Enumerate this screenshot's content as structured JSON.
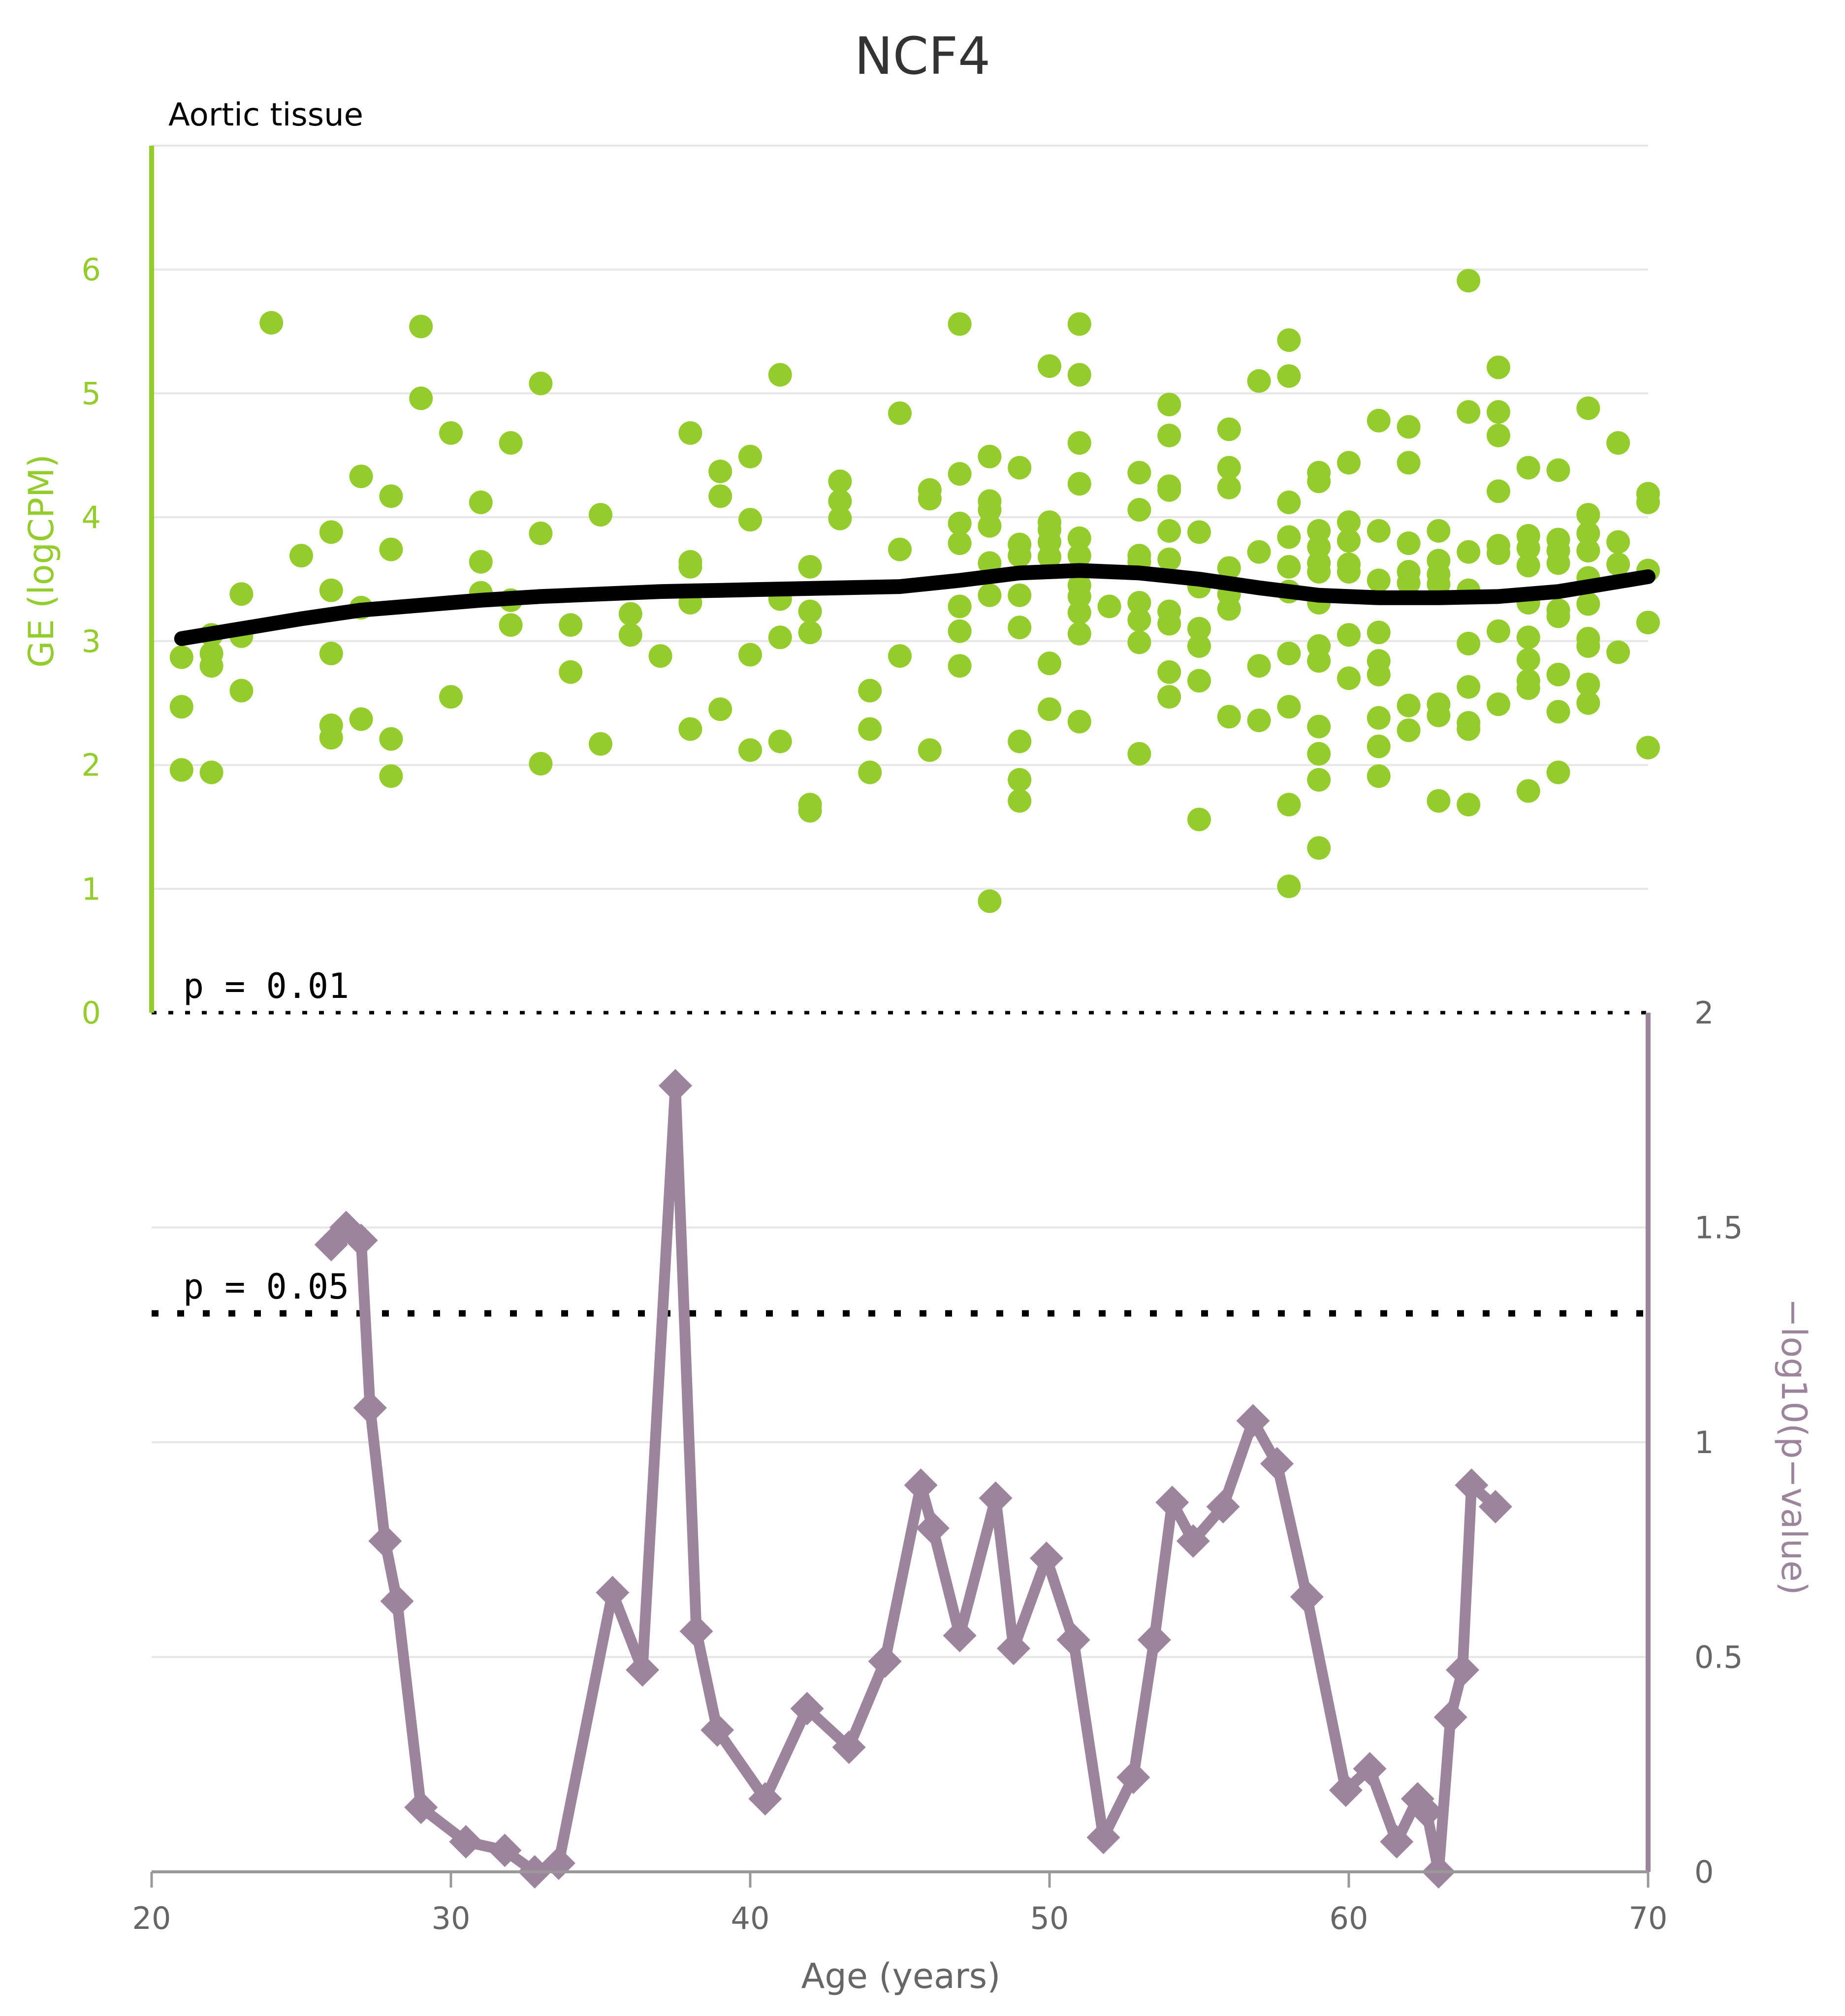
{
  "colors": {
    "scatter": "#94cc2e",
    "trend": "#000000",
    "pvalue_line": "#9c849c",
    "top_axis": "#94cc2e",
    "bottom_axis": "#9c849c",
    "grid": "#e6e6e6",
    "text": "#333333",
    "bottom_tick_text": "#666666",
    "reference_line": "#000000"
  },
  "chart_data": [
    {
      "panel": "top",
      "type": "scatter",
      "title": "NCF4",
      "subtitle": "Aortic tissue",
      "xlabel": "Age (years)",
      "ylabel": "GE (logCPM)",
      "xlim": [
        20,
        70
      ],
      "ylim": [
        0,
        7
      ],
      "yticks": [
        0,
        1,
        2,
        3,
        4,
        5,
        6
      ],
      "xticks": [
        20,
        30,
        40,
        50,
        60,
        70
      ],
      "grid": true,
      "points": [
        [
          21,
          2.87
        ],
        [
          21,
          2.47
        ],
        [
          21,
          1.96
        ],
        [
          22,
          3.05
        ],
        [
          22,
          2.9
        ],
        [
          22,
          2.8
        ],
        [
          22,
          1.94
        ],
        [
          23,
          3.38
        ],
        [
          23,
          3.04
        ],
        [
          23,
          2.6
        ],
        [
          24,
          5.57
        ],
        [
          25,
          3.69
        ],
        [
          26,
          3.88
        ],
        [
          26,
          3.41
        ],
        [
          26,
          2.9
        ],
        [
          26,
          2.32
        ],
        [
          26,
          2.22
        ],
        [
          27,
          4.33
        ],
        [
          27,
          3.27
        ],
        [
          27,
          2.37
        ],
        [
          28,
          4.17
        ],
        [
          28,
          3.74
        ],
        [
          28,
          2.21
        ],
        [
          28,
          1.91
        ],
        [
          29,
          5.54
        ],
        [
          29,
          4.96
        ],
        [
          30,
          4.68
        ],
        [
          30,
          2.55
        ],
        [
          31,
          4.12
        ],
        [
          31,
          3.64
        ],
        [
          31,
          3.39
        ],
        [
          32,
          4.6
        ],
        [
          32,
          3.33
        ],
        [
          32,
          3.13
        ],
        [
          33,
          5.08
        ],
        [
          33,
          3.87
        ],
        [
          33,
          2.01
        ],
        [
          34,
          3.13
        ],
        [
          34,
          2.75
        ],
        [
          35,
          4.02
        ],
        [
          35,
          2.17
        ],
        [
          36,
          3.22
        ],
        [
          36,
          3.05
        ],
        [
          37,
          2.88
        ],
        [
          38,
          4.68
        ],
        [
          38,
          3.64
        ],
        [
          38,
          3.6
        ],
        [
          38,
          3.31
        ],
        [
          38,
          2.29
        ],
        [
          39,
          4.37
        ],
        [
          39,
          4.17
        ],
        [
          39,
          2.45
        ],
        [
          40,
          4.49
        ],
        [
          40,
          3.98
        ],
        [
          40,
          2.89
        ],
        [
          40,
          2.12
        ],
        [
          41,
          5.15
        ],
        [
          41,
          3.34
        ],
        [
          41,
          3.03
        ],
        [
          41,
          2.19
        ],
        [
          42,
          3.6
        ],
        [
          42,
          3.24
        ],
        [
          42,
          3.07
        ],
        [
          42,
          1.68
        ],
        [
          42,
          1.63
        ],
        [
          43,
          4.29
        ],
        [
          43,
          4.13
        ],
        [
          43,
          3.99
        ],
        [
          44,
          2.6
        ],
        [
          44,
          2.29
        ],
        [
          44,
          1.94
        ],
        [
          45,
          4.84
        ],
        [
          45,
          3.74
        ],
        [
          45,
          2.88
        ],
        [
          46,
          4.22
        ],
        [
          46,
          4.15
        ],
        [
          46,
          2.12
        ],
        [
          47,
          5.56
        ],
        [
          47,
          4.35
        ],
        [
          47,
          3.95
        ],
        [
          47,
          3.79
        ],
        [
          47,
          3.28
        ],
        [
          47,
          3.08
        ],
        [
          47,
          2.8
        ],
        [
          48,
          4.49
        ],
        [
          48,
          4.13
        ],
        [
          48,
          4.06
        ],
        [
          48,
          3.93
        ],
        [
          48,
          3.63
        ],
        [
          48,
          3.37
        ],
        [
          48,
          0.9
        ],
        [
          49,
          4.4
        ],
        [
          49,
          3.78
        ],
        [
          49,
          3.69
        ],
        [
          49,
          3.37
        ],
        [
          49,
          3.11
        ],
        [
          49,
          2.19
        ],
        [
          49,
          1.88
        ],
        [
          49,
          1.71
        ],
        [
          50,
          3.96
        ],
        [
          50,
          3.9
        ],
        [
          50,
          3.8
        ],
        [
          50,
          3.68
        ],
        [
          50,
          2.82
        ],
        [
          50,
          2.45
        ],
        [
          50,
          5.22
        ],
        [
          51,
          5.56
        ],
        [
          51,
          5.15
        ],
        [
          51,
          4.6
        ],
        [
          51,
          4.27
        ],
        [
          51,
          3.83
        ],
        [
          51,
          3.69
        ],
        [
          51,
          3.57
        ],
        [
          51,
          3.45
        ],
        [
          51,
          3.36
        ],
        [
          51,
          3.23
        ],
        [
          51,
          3.06
        ],
        [
          51,
          2.35
        ],
        [
          52,
          3.28
        ],
        [
          53,
          4.36
        ],
        [
          53,
          4.06
        ],
        [
          53,
          3.69
        ],
        [
          53,
          3.64
        ],
        [
          53,
          3.31
        ],
        [
          53,
          3.17
        ],
        [
          53,
          2.99
        ],
        [
          53,
          2.09
        ],
        [
          54,
          4.91
        ],
        [
          54,
          4.66
        ],
        [
          54,
          4.25
        ],
        [
          54,
          4.22
        ],
        [
          54,
          3.89
        ],
        [
          54,
          3.66
        ],
        [
          54,
          3.24
        ],
        [
          54,
          3.14
        ],
        [
          54,
          2.75
        ],
        [
          54,
          2.55
        ],
        [
          55,
          3.88
        ],
        [
          55,
          3.44
        ],
        [
          55,
          3.1
        ],
        [
          55,
          2.96
        ],
        [
          55,
          2.68
        ],
        [
          55,
          1.56
        ],
        [
          56,
          4.71
        ],
        [
          56,
          4.4
        ],
        [
          56,
          4.24
        ],
        [
          56,
          3.59
        ],
        [
          56,
          3.38
        ],
        [
          56,
          3.26
        ],
        [
          56,
          2.39
        ],
        [
          57,
          5.1
        ],
        [
          57,
          3.72
        ],
        [
          57,
          2.8
        ],
        [
          57,
          2.36
        ],
        [
          58,
          5.43
        ],
        [
          58,
          5.14
        ],
        [
          58,
          4.12
        ],
        [
          58,
          3.84
        ],
        [
          58,
          3.6
        ],
        [
          58,
          3.4
        ],
        [
          58,
          2.9
        ],
        [
          58,
          2.47
        ],
        [
          58,
          1.68
        ],
        [
          58,
          1.02
        ],
        [
          59,
          4.36
        ],
        [
          59,
          4.29
        ],
        [
          59,
          3.89
        ],
        [
          59,
          3.76
        ],
        [
          59,
          3.63
        ],
        [
          59,
          3.56
        ],
        [
          59,
          3.31
        ],
        [
          59,
          2.96
        ],
        [
          59,
          2.84
        ],
        [
          59,
          2.31
        ],
        [
          59,
          2.09
        ],
        [
          59,
          1.88
        ],
        [
          59,
          1.33
        ],
        [
          60,
          4.44
        ],
        [
          60,
          3.96
        ],
        [
          60,
          3.81
        ],
        [
          60,
          3.62
        ],
        [
          60,
          3.56
        ],
        [
          60,
          3.05
        ],
        [
          60,
          2.7
        ],
        [
          61,
          4.78
        ],
        [
          61,
          3.89
        ],
        [
          61,
          3.49
        ],
        [
          61,
          3.07
        ],
        [
          61,
          2.84
        ],
        [
          61,
          2.73
        ],
        [
          61,
          2.38
        ],
        [
          61,
          2.15
        ],
        [
          61,
          1.91
        ],
        [
          62,
          4.73
        ],
        [
          62,
          4.44
        ],
        [
          62,
          3.79
        ],
        [
          62,
          3.56
        ],
        [
          62,
          3.47
        ],
        [
          62,
          2.48
        ],
        [
          62,
          2.28
        ],
        [
          63,
          3.89
        ],
        [
          63,
          3.65
        ],
        [
          63,
          3.54
        ],
        [
          63,
          3.46
        ],
        [
          63,
          2.49
        ],
        [
          63,
          2.4
        ],
        [
          63,
          1.71
        ],
        [
          64,
          5.91
        ],
        [
          64,
          4.85
        ],
        [
          64,
          3.72
        ],
        [
          64,
          3.41
        ],
        [
          64,
          2.98
        ],
        [
          64,
          2.63
        ],
        [
          64,
          2.34
        ],
        [
          64,
          2.29
        ],
        [
          64,
          1.68
        ],
        [
          65,
          5.21
        ],
        [
          65,
          4.85
        ],
        [
          65,
          4.66
        ],
        [
          65,
          4.21
        ],
        [
          65,
          3.77
        ],
        [
          65,
          3.71
        ],
        [
          65,
          3.08
        ],
        [
          65,
          2.49
        ],
        [
          66,
          4.4
        ],
        [
          66,
          3.85
        ],
        [
          66,
          3.75
        ],
        [
          66,
          3.61
        ],
        [
          66,
          3.31
        ],
        [
          66,
          3.03
        ],
        [
          66,
          2.85
        ],
        [
          66,
          2.68
        ],
        [
          66,
          2.62
        ],
        [
          66,
          1.79
        ],
        [
          67,
          4.38
        ],
        [
          67,
          3.82
        ],
        [
          67,
          3.73
        ],
        [
          67,
          3.63
        ],
        [
          67,
          3.25
        ],
        [
          67,
          3.2
        ],
        [
          67,
          2.73
        ],
        [
          67,
          2.43
        ],
        [
          67,
          1.94
        ],
        [
          68,
          4.88
        ],
        [
          68,
          4.02
        ],
        [
          68,
          3.87
        ],
        [
          68,
          3.73
        ],
        [
          68,
          3.51
        ],
        [
          68,
          3.3
        ],
        [
          68,
          3.02
        ],
        [
          68,
          2.96
        ],
        [
          68,
          2.65
        ],
        [
          68,
          2.5
        ],
        [
          69,
          4.6
        ],
        [
          69,
          3.8
        ],
        [
          69,
          3.62
        ],
        [
          69,
          2.91
        ],
        [
          70,
          4.19
        ],
        [
          70,
          4.12
        ],
        [
          70,
          3.57
        ],
        [
          70,
          3.15
        ],
        [
          70,
          2.14
        ]
      ],
      "trend_line": {
        "x": [
          21,
          23,
          25,
          27,
          29,
          31,
          33,
          35,
          37,
          39,
          41,
          43,
          45,
          47,
          49,
          51,
          53,
          55,
          57,
          59,
          61,
          63,
          65,
          67,
          70
        ],
        "y": [
          3.02,
          3.1,
          3.18,
          3.25,
          3.29,
          3.33,
          3.36,
          3.38,
          3.4,
          3.41,
          3.42,
          3.43,
          3.44,
          3.49,
          3.55,
          3.57,
          3.55,
          3.5,
          3.43,
          3.37,
          3.35,
          3.35,
          3.36,
          3.4,
          3.52
        ]
      }
    },
    {
      "panel": "bottom",
      "type": "line",
      "xlabel": "Age (years)",
      "ylabel": "−log10(p−value)",
      "xlim": [
        20,
        70
      ],
      "ylim": [
        0,
        2
      ],
      "yticks": [
        0,
        0.5,
        1,
        1.5,
        2
      ],
      "ytick_labels": [
        "0",
        "0.5",
        "1",
        "1.5",
        "2"
      ],
      "xticks": [
        20,
        30,
        40,
        50,
        60,
        70
      ],
      "grid": true,
      "x": [
        26.0,
        26.5,
        27.0,
        27.3,
        27.8,
        28.2,
        29.0,
        30.5,
        31.8,
        32.8,
        33.6,
        35.4,
        36.4,
        37.5,
        38.2,
        38.9,
        40.5,
        41.9,
        43.3,
        44.5,
        45.7,
        46.1,
        47.0,
        48.2,
        48.8,
        49.9,
        50.8,
        51.8,
        52.8,
        53.5,
        54.1,
        54.8,
        55.8,
        56.8,
        57.6,
        58.6,
        59.9,
        60.7,
        61.6,
        62.3,
        62.6,
        63.0,
        63.4,
        63.8,
        64.1,
        64.9
      ],
      "values": [
        1.46,
        1.5,
        1.47,
        1.08,
        0.77,
        0.63,
        0.15,
        0.07,
        0.05,
        0.0,
        0.02,
        0.65,
        0.47,
        1.83,
        0.56,
        0.33,
        0.17,
        0.38,
        0.29,
        0.49,
        0.9,
        0.8,
        0.55,
        0.87,
        0.52,
        0.73,
        0.54,
        0.08,
        0.22,
        0.54,
        0.86,
        0.77,
        0.85,
        1.05,
        0.95,
        0.64,
        0.19,
        0.24,
        0.07,
        0.17,
        0.14,
        0.0,
        0.36,
        0.47,
        0.9,
        0.85
      ],
      "reference_lines": [
        {
          "label": "p = 0.01",
          "value": 2
        },
        {
          "label": "p = 0.05",
          "value": 1.3
        }
      ]
    }
  ]
}
